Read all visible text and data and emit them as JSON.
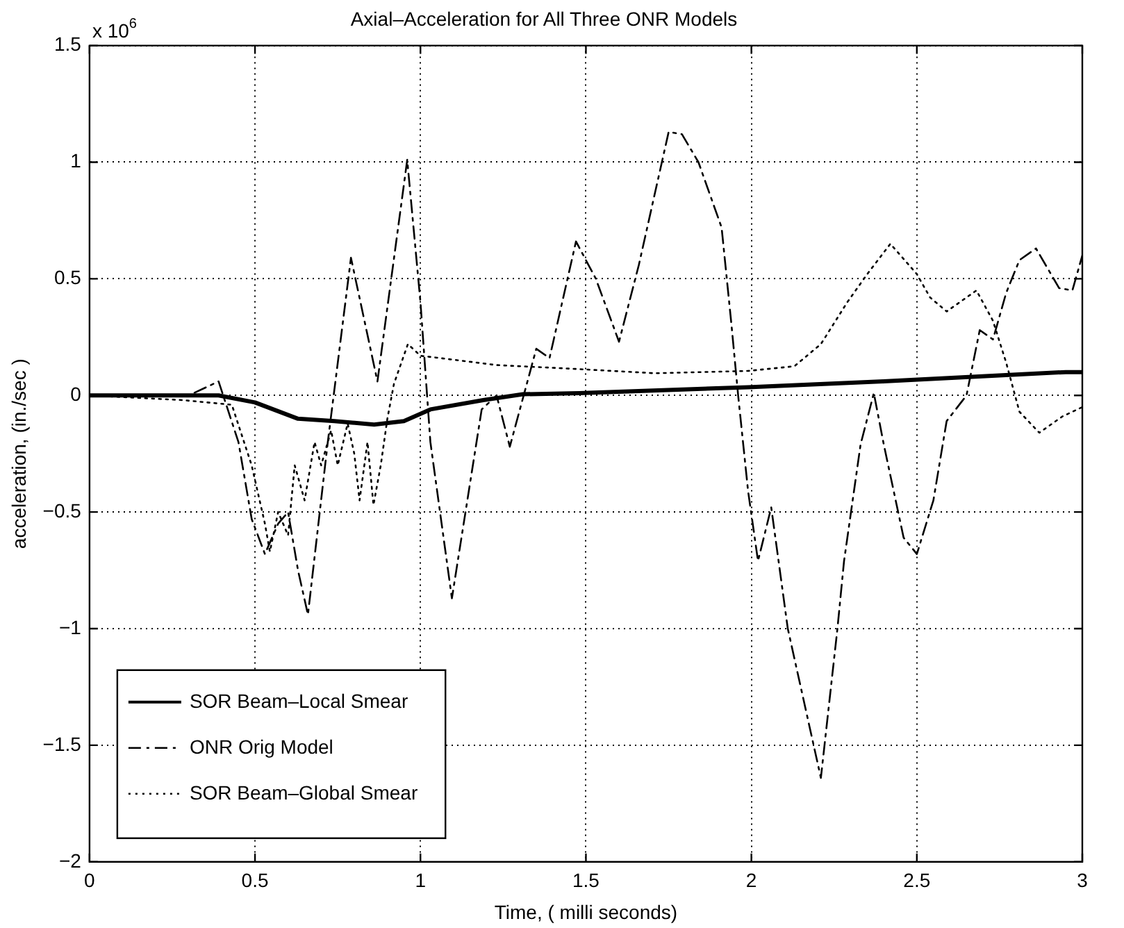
{
  "chart_data": {
    "type": "line",
    "title": "Axial–Acceleration for All Three ONR Models",
    "xlabel": "Time, ( milli seconds)",
    "ylabel": "acceleration, (in./sec )",
    "annotations": [
      "x 10$^{6}$"
    ],
    "xlim": [
      0,
      3
    ],
    "xticks": [
      0,
      0.5,
      1,
      1.5,
      2,
      2.5,
      3
    ],
    "ylim": [
      -2,
      1.5
    ],
    "yticks": [
      -2,
      -1.5,
      -1,
      -0.5,
      0,
      0.5,
      1,
      1.5
    ],
    "grid": true,
    "legend": "bottom left",
    "marker": "none",
    "series": [
      {
        "name": "SOR Beam–Local Smear",
        "color": "#000000",
        "line_style": "solid",
        "x": [
          0,
          0.39,
          0.5,
          0.63,
          0.74,
          0.86,
          0.95,
          1.03,
          1.19,
          1.31,
          1.48,
          1.99,
          2.4,
          2.95,
          3
        ],
        "values": [
          0,
          0,
          -0.03,
          -0.1,
          -0.11,
          -0.125,
          -0.11,
          -0.06,
          -0.02,
          0.005,
          0.01,
          0.035,
          0.06,
          0.1,
          0.1
        ]
      },
      {
        "name": "ONR Orig Model",
        "color": "#000000",
        "line_style": "dashed",
        "x": [
          0,
          0.3,
          0.39,
          0.45,
          0.49,
          0.53,
          0.57,
          0.6,
          0.63,
          0.66,
          0.72,
          0.79,
          0.87,
          0.96,
          1.0,
          1.03,
          1.095,
          1.185,
          1.23,
          1.27,
          1.35,
          1.39,
          1.47,
          1.53,
          1.6,
          1.66,
          1.75,
          1.79,
          1.84,
          1.91,
          1.94,
          1.96,
          1.99,
          2.02,
          2.06,
          2.11,
          2.21,
          2.26,
          2.28,
          2.33,
          2.37,
          2.4,
          2.46,
          2.5,
          2.55,
          2.59,
          2.65,
          2.69,
          2.73,
          2.77,
          2.81,
          2.86,
          2.93,
          2.97,
          3
        ],
        "values": [
          0,
          0,
          0.06,
          -0.2,
          -0.53,
          -0.68,
          -0.55,
          -0.5,
          -0.75,
          -0.94,
          -0.2,
          0.59,
          0.06,
          1.01,
          0.4,
          -0.2,
          -0.87,
          -0.06,
          0,
          -0.22,
          0.2,
          0.16,
          0.66,
          0.5,
          0.23,
          0.56,
          1.13,
          1.12,
          1.0,
          0.72,
          0.3,
          0,
          -0.41,
          -0.71,
          -0.48,
          -1.0,
          -1.64,
          -1.0,
          -0.71,
          -0.21,
          0.01,
          -0.21,
          -0.61,
          -0.68,
          -0.45,
          -0.11,
          0,
          0.28,
          0.24,
          0.44,
          0.58,
          0.63,
          0.46,
          0.45,
          0.6
        ]
      },
      {
        "name": "SOR Beam–Global Smear",
        "color": "#000000",
        "line_style": "dotted",
        "x": [
          0,
          0.28,
          0.43,
          0.49,
          0.53,
          0.545,
          0.57,
          0.6,
          0.62,
          0.65,
          0.68,
          0.7,
          0.73,
          0.75,
          0.78,
          0.8,
          0.816,
          0.84,
          0.858,
          0.88,
          0.9,
          0.92,
          0.962,
          1.0,
          1.06,
          1.23,
          1.45,
          1.71,
          1.99,
          2.13,
          2.21,
          2.29,
          2.35,
          2.42,
          2.5,
          2.54,
          2.59,
          2.68,
          2.73,
          2.77,
          2.81,
          2.87,
          2.94,
          3
        ],
        "values": [
          0,
          -0.02,
          -0.04,
          -0.3,
          -0.55,
          -0.67,
          -0.5,
          -0.6,
          -0.3,
          -0.45,
          -0.2,
          -0.3,
          -0.15,
          -0.3,
          -0.12,
          -0.25,
          -0.45,
          -0.2,
          -0.47,
          -0.3,
          -0.1,
          0.05,
          0.22,
          0.17,
          0.16,
          0.13,
          0.115,
          0.095,
          0.105,
          0.125,
          0.22,
          0.4,
          0.52,
          0.65,
          0.52,
          0.42,
          0.36,
          0.45,
          0.32,
          0.14,
          -0.07,
          -0.16,
          -0.09,
          -0.05
        ]
      }
    ]
  }
}
